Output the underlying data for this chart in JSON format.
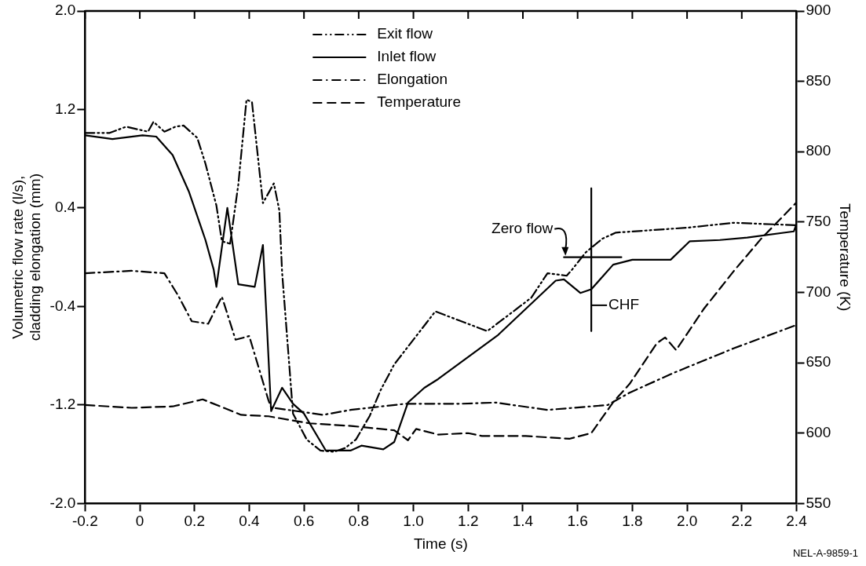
{
  "chart_data": {
    "type": "line",
    "xlabel": "Time (s)",
    "ylabel": "Volumetric flow rate (l/s),\ncladding elongation (mm)",
    "y2label": "Temperature (K)",
    "xlim": [
      -0.2,
      2.4
    ],
    "xticks": [
      {
        "value": -0.2,
        "label": "-0.2"
      },
      0,
      {
        "value": 0.2,
        "label": "0.2"
      },
      {
        "value": 0.4,
        "label": "0.4"
      },
      {
        "value": 0.6,
        "label": "0.6"
      },
      {
        "value": 0.8,
        "label": "0.8"
      },
      {
        "value": 1,
        "label": "1.0"
      },
      {
        "value": 1.2,
        "label": "1.2"
      },
      {
        "value": 1.4,
        "label": "1.4"
      },
      {
        "value": 1.6,
        "label": "1.6"
      },
      {
        "value": 1.8,
        "label": "1.8"
      },
      {
        "value": 2,
        "label": "2.0"
      },
      {
        "value": 2.2,
        "label": "2.2"
      },
      {
        "value": 2.4,
        "label": "2.4"
      }
    ],
    "ylim": [
      -2,
      2
    ],
    "yticks": [
      {
        "value": -2,
        "label": "-2.0"
      },
      {
        "value": -1.2,
        "label": "-1.2"
      },
      {
        "value": -0.4,
        "label": "-0.4"
      },
      {
        "value": 0.4,
        "label": "0.4"
      },
      {
        "value": 1.2,
        "label": "1.2"
      },
      {
        "value": 2,
        "label": "2.0"
      }
    ],
    "y2lim": [
      550,
      900
    ],
    "y2ticks": [
      550,
      600,
      650,
      700,
      750,
      800,
      850,
      900
    ],
    "grid": false,
    "legend": "top",
    "marker": "none",
    "series": [
      {
        "name": "Exit flow",
        "color": "#000000",
        "line_style": "dashdotdot",
        "x": [
          -0.2,
          -0.11,
          -0.05,
          0.03,
          0.05,
          0.09,
          0.13,
          0.16,
          0.21,
          0.24,
          0.28,
          0.3,
          0.33,
          0.36,
          0.39,
          0.41,
          0.45,
          0.49,
          0.51,
          0.52,
          0.56,
          0.61,
          0.66,
          0.71,
          0.75,
          0.79,
          0.84,
          0.88,
          0.93,
          1.08,
          1.27,
          1.43,
          1.49,
          1.56,
          1.58,
          1.63,
          1.69,
          1.74,
          2.0,
          2.17,
          2.4
        ],
        "values": [
          1.01,
          1.01,
          1.06,
          1.02,
          1.1,
          1.02,
          1.06,
          1.07,
          0.97,
          0.76,
          0.42,
          0.13,
          0.11,
          0.59,
          1.28,
          1.26,
          0.44,
          0.6,
          0.38,
          -0.12,
          -1.27,
          -1.48,
          -1.57,
          -1.58,
          -1.55,
          -1.48,
          -1.29,
          -1.08,
          -0.87,
          -0.44,
          -0.6,
          -0.33,
          -0.13,
          -0.15,
          -0.1,
          0.04,
          0.15,
          0.2,
          0.24,
          0.28,
          0.26
        ]
      },
      {
        "name": "Inlet flow",
        "color": "#000000",
        "line_style": "solid",
        "x": [
          -0.2,
          -0.1,
          0.01,
          0.06,
          0.12,
          0.18,
          0.24,
          0.27,
          0.28,
          0.32,
          0.36,
          0.42,
          0.45,
          0.48,
          0.52,
          0.56,
          0.6,
          0.68,
          0.74,
          0.77,
          0.81,
          0.89,
          0.93,
          0.98,
          1.04,
          1.09,
          1.31,
          1.52,
          1.55,
          1.61,
          1.65,
          1.73,
          1.8,
          1.94,
          2.01,
          2.12,
          2.22,
          2.39,
          2.4
        ],
        "values": [
          0.99,
          0.96,
          0.99,
          0.98,
          0.83,
          0.53,
          0.14,
          -0.1,
          -0.24,
          0.4,
          -0.22,
          -0.24,
          0.1,
          -1.25,
          -1.06,
          -1.19,
          -1.27,
          -1.57,
          -1.57,
          -1.57,
          -1.53,
          -1.56,
          -1.5,
          -1.18,
          -1.06,
          -0.99,
          -0.63,
          -0.19,
          -0.18,
          -0.29,
          -0.26,
          -0.06,
          -0.02,
          -0.02,
          0.13,
          0.14,
          0.16,
          0.21,
          0.27
        ]
      },
      {
        "name": "Elongation",
        "color": "#000000",
        "line_style": "dashdot",
        "x": [
          -0.2,
          -0.03,
          0.09,
          0.14,
          0.19,
          0.25,
          0.3,
          0.35,
          0.4,
          0.47,
          0.48,
          0.67,
          0.77,
          0.97,
          1.17,
          1.3,
          1.49,
          1.71,
          1.79,
          1.95,
          2.17,
          2.4
        ],
        "values": [
          -0.13,
          -0.11,
          -0.13,
          -0.31,
          -0.52,
          -0.54,
          -0.32,
          -0.67,
          -0.64,
          -1.16,
          -1.22,
          -1.28,
          -1.24,
          -1.19,
          -1.19,
          -1.18,
          -1.24,
          -1.2,
          -1.1,
          -0.94,
          -0.74,
          -0.55
        ]
      },
      {
        "name": "Temperature",
        "color": "#000000",
        "line_style": "dashed",
        "axis": "y2",
        "x": [
          -0.2,
          -0.03,
          0.12,
          0.23,
          0.37,
          0.47,
          0.62,
          0.78,
          0.93,
          0.98,
          1.01,
          1.09,
          1.2,
          1.25,
          1.41,
          1.57,
          1.65,
          1.73,
          1.79,
          1.89,
          1.92,
          1.96,
          2.06,
          2.17,
          2.27,
          2.4
        ],
        "values": [
          620,
          618,
          619,
          624,
          613,
          612,
          607,
          605,
          602,
          595,
          603,
          599,
          600,
          598,
          598,
          596,
          600,
          622,
          635,
          664,
          668,
          659,
          688,
          715,
          738,
          764
        ]
      },
      {
        "type": "line",
        "color": "#000000",
        "line_style": "solid",
        "x": [
          1.55,
          1.76
        ],
        "values": [
          0,
          0
        ]
      },
      {
        "type": "line",
        "color": "#000000",
        "line_style": "solid",
        "x": [
          1.65,
          1.65
        ],
        "values": [
          0.56,
          -0.6
        ]
      }
    ],
    "annotations": [
      {
        "text": "Zero flow",
        "x": 1.55,
        "y": 0
      },
      {
        "text": "CHF",
        "x": 1.65,
        "y": -0.39
      },
      "NEL-A-9859-1"
    ]
  }
}
